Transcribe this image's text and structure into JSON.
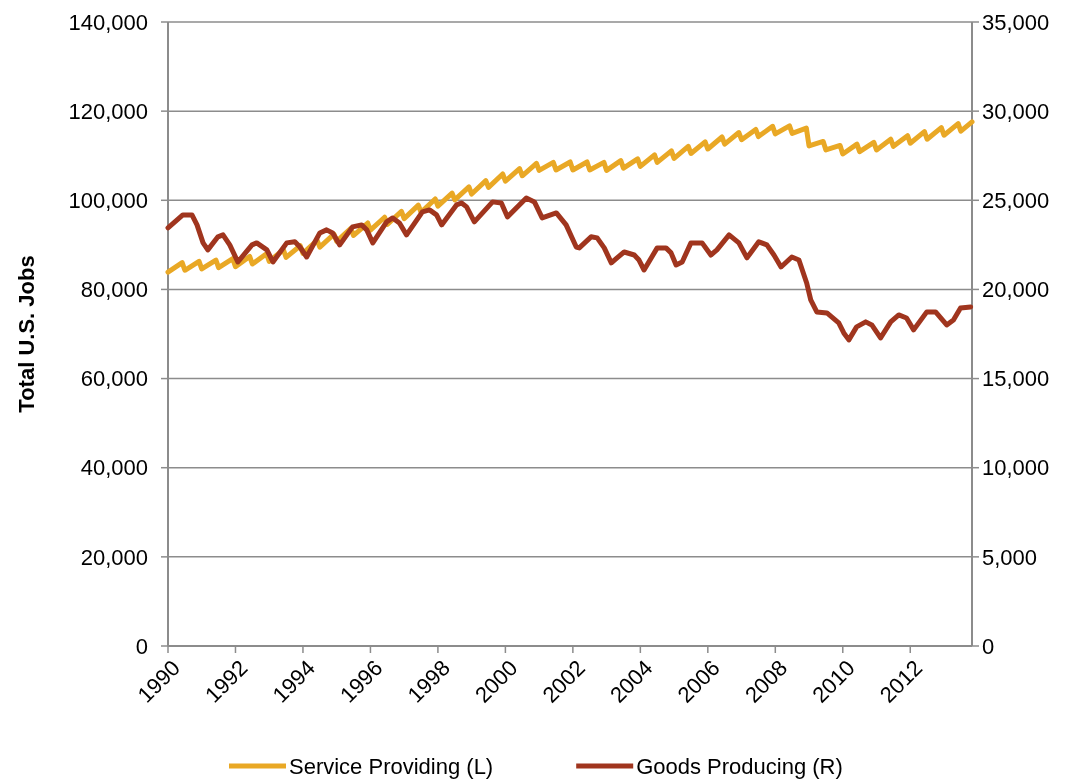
{
  "chart_data": {
    "type": "line",
    "ylabel": "Total U.S. Jobs",
    "xlim": [
      1990,
      2013.83
    ],
    "xticks": [
      1990,
      1992,
      1994,
      1996,
      1998,
      2000,
      2002,
      2004,
      2006,
      2008,
      2010,
      2012
    ],
    "ylim": [
      0,
      140000
    ],
    "yticks": [
      {
        "value": 0,
        "label": "0"
      },
      {
        "value": 20000,
        "label": "20,000"
      },
      {
        "value": 40000,
        "label": "40,000"
      },
      {
        "value": 60000,
        "label": "60,000"
      },
      {
        "value": 80000,
        "label": "80,000"
      },
      {
        "value": 100000,
        "label": "100,000"
      },
      {
        "value": 120000,
        "label": "120,000"
      },
      {
        "value": 140000,
        "label": "140,000"
      }
    ],
    "y2lim": [
      0,
      35000
    ],
    "y2ticks": [
      {
        "value": 0,
        "label": "0"
      },
      {
        "value": 5000,
        "label": "5,000"
      },
      {
        "value": 10000,
        "label": "10,000"
      },
      {
        "value": 15000,
        "label": "15,000"
      },
      {
        "value": 20000,
        "label": "20,000"
      },
      {
        "value": 25000,
        "label": "25,000"
      },
      {
        "value": 30000,
        "label": "30,000"
      },
      {
        "value": 35000,
        "label": "35,000"
      }
    ],
    "grid": "y",
    "legend": "bottom",
    "line_style": "solid",
    "marker": "none",
    "series": [
      {
        "name": "Service Providing (L)",
        "color": "#e9a825",
        "axis": "y",
        "x": [
          1990,
          1990.42,
          1990.5,
          1990.92,
          1991,
          1991.42,
          1991.5,
          1991.92,
          1992,
          1992.42,
          1992.5,
          1992.92,
          1993,
          1993.42,
          1993.5,
          1993.92,
          1994,
          1994.42,
          1994.5,
          1994.92,
          1995,
          1995.42,
          1995.5,
          1995.92,
          1996,
          1996.42,
          1996.5,
          1996.92,
          1997,
          1997.42,
          1997.5,
          1997.92,
          1998,
          1998.42,
          1998.5,
          1998.92,
          1999,
          1999.42,
          1999.5,
          1999.92,
          2000,
          2000.42,
          2000.5,
          2000.92,
          2001,
          2001.42,
          2001.5,
          2001.92,
          2002,
          2002.42,
          2002.5,
          2002.92,
          2003,
          2003.42,
          2003.5,
          2003.92,
          2004,
          2004.42,
          2004.5,
          2004.92,
          2005,
          2005.42,
          2005.5,
          2005.92,
          2006,
          2006.42,
          2006.5,
          2006.92,
          2007,
          2007.42,
          2007.5,
          2007.92,
          2008,
          2008.42,
          2008.5,
          2008.92,
          2009,
          2009.42,
          2009.5,
          2009.92,
          2010,
          2010.42,
          2010.5,
          2010.92,
          2011,
          2011.42,
          2011.5,
          2011.92,
          2012,
          2012.42,
          2012.5,
          2012.92,
          2013,
          2013.42,
          2013.5,
          2013.83
        ],
        "values": [
          83900,
          86000,
          84300,
          86300,
          84600,
          86600,
          84900,
          86900,
          85100,
          87400,
          85700,
          88000,
          86300,
          88900,
          87200,
          89800,
          88100,
          91000,
          89500,
          92400,
          90800,
          93700,
          92100,
          94900,
          93300,
          96200,
          94600,
          97500,
          95900,
          98900,
          97300,
          100300,
          98700,
          101600,
          100100,
          103000,
          101400,
          104400,
          102900,
          105900,
          104300,
          107100,
          105500,
          108300,
          106700,
          108500,
          106800,
          108600,
          106800,
          108600,
          106800,
          108500,
          106700,
          108900,
          107200,
          109300,
          107600,
          110200,
          108500,
          111100,
          109400,
          112100,
          110500,
          113100,
          111500,
          114200,
          112600,
          115200,
          113600,
          115900,
          114300,
          116600,
          114900,
          116700,
          115000,
          116200,
          112200,
          113200,
          111300,
          112300,
          110400,
          112600,
          110900,
          113000,
          111300,
          113700,
          112100,
          114500,
          112800,
          115400,
          113700,
          116300,
          114600,
          117200,
          115500,
          117600
        ]
      },
      {
        "name": "Goods Producing (R)",
        "color": "#a0351e",
        "axis": "y2",
        "x": [
          1990,
          1990.44,
          1990.71,
          1990.86,
          1991.04,
          1991.18,
          1991.48,
          1991.63,
          1991.83,
          1992.07,
          1992.49,
          1992.63,
          1992.93,
          1993.11,
          1993.52,
          1993.76,
          1993.91,
          1994.11,
          1994.5,
          1994.7,
          1994.88,
          1995.09,
          1995.47,
          1995.74,
          1995.89,
          1996.07,
          1996.48,
          1996.66,
          1996.86,
          1997.07,
          1997.54,
          1997.75,
          1997.96,
          1998.11,
          1998.55,
          1998.7,
          1998.85,
          1999.08,
          1999.62,
          1999.88,
          2000.06,
          2000.62,
          2000.86,
          2001.09,
          2001.51,
          2001.8,
          2002.1,
          2002.19,
          2002.54,
          2002.72,
          2002.93,
          2003.14,
          2003.31,
          2003.52,
          2003.82,
          2003.96,
          2004.11,
          2004.5,
          2004.76,
          2004.91,
          2005.06,
          2005.24,
          2005.5,
          2005.83,
          2006.09,
          2006.27,
          2006.63,
          2006.92,
          2007.16,
          2007.51,
          2007.75,
          2007.96,
          2008.17,
          2008.49,
          2008.7,
          2008.93,
          2009.05,
          2009.23,
          2009.53,
          2009.88,
          2010.03,
          2010.18,
          2010.41,
          2010.68,
          2010.86,
          2011.12,
          2011.42,
          2011.66,
          2011.89,
          2012.1,
          2012.49,
          2012.75,
          2013.08,
          2013.28,
          2013.49,
          2013.79
        ],
        "values": [
          23450,
          24180,
          24180,
          23620,
          22610,
          22220,
          22950,
          23060,
          22500,
          21540,
          22500,
          22610,
          22220,
          21540,
          22610,
          22670,
          22380,
          21820,
          23170,
          23340,
          23170,
          22500,
          23510,
          23620,
          23340,
          22610,
          23790,
          24010,
          23730,
          23060,
          24350,
          24460,
          24180,
          23620,
          24740,
          24850,
          24630,
          23790,
          24910,
          24850,
          24070,
          25130,
          24910,
          24010,
          24290,
          23620,
          22380,
          22330,
          22950,
          22890,
          22330,
          21490,
          21770,
          22100,
          21930,
          21650,
          21090,
          22330,
          22330,
          22050,
          21370,
          21540,
          22610,
          22610,
          21930,
          22220,
          23060,
          22610,
          21770,
          22670,
          22500,
          21930,
          21260,
          21820,
          21650,
          20360,
          19410,
          18740,
          18680,
          18120,
          17560,
          17170,
          17900,
          18180,
          18010,
          17280,
          18180,
          18570,
          18400,
          17730,
          18740,
          18740,
          18010,
          18290,
          18960,
          19020
        ]
      }
    ]
  }
}
